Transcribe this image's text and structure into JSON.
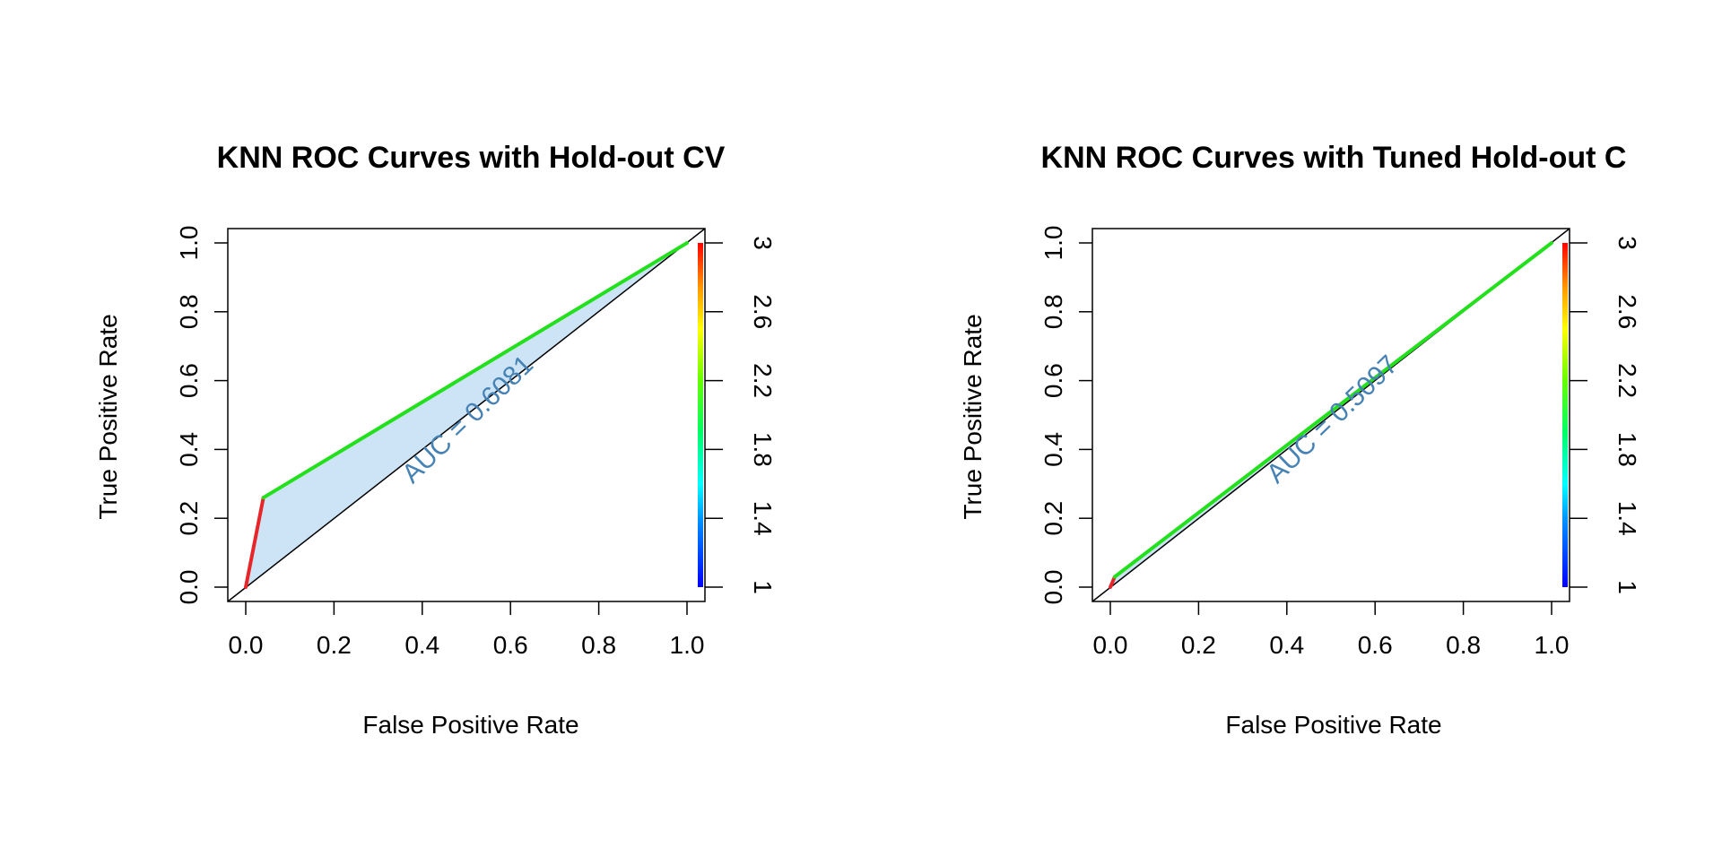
{
  "chart_data": [
    {
      "type": "line",
      "title": "KNN ROC Curves with Hold-out CV",
      "xlabel": "False Positive Rate",
      "ylabel": "True Positive Rate",
      "xlim": [
        0,
        1
      ],
      "ylim": [
        0,
        1
      ],
      "xticks": [
        "0.0",
        "0.2",
        "0.4",
        "0.6",
        "0.8",
        "1.0"
      ],
      "yticks": [
        "0.0",
        "0.2",
        "0.4",
        "0.6",
        "0.8",
        "1.0"
      ],
      "roc_points": [
        [
          0,
          0
        ],
        [
          0.04,
          0.26
        ],
        [
          1,
          1
        ]
      ],
      "roc_colors": [
        "#e8262a",
        "#22e01c"
      ],
      "auc_label": "AUC = 0.6081",
      "auc_color": "#4682b4",
      "fill_color": "#cde3f6",
      "diagonal": true,
      "colorbar_ticks": [
        "1",
        "1.4",
        "1.8",
        "2.2",
        "2.6",
        "3"
      ],
      "colorbar_range": [
        1,
        3
      ]
    },
    {
      "type": "line",
      "title": "KNN ROC Curves with Tuned Hold-out C",
      "xlabel": "False Positive Rate",
      "ylabel": "True Positive Rate",
      "xlim": [
        0,
        1
      ],
      "ylim": [
        0,
        1
      ],
      "xticks": [
        "0.0",
        "0.2",
        "0.4",
        "0.6",
        "0.8",
        "1.0"
      ],
      "yticks": [
        "0.0",
        "0.2",
        "0.4",
        "0.6",
        "0.8",
        "1.0"
      ],
      "roc_points": [
        [
          0,
          0
        ],
        [
          0.01,
          0.03
        ],
        [
          1,
          1
        ]
      ],
      "roc_colors": [
        "#e8262a",
        "#22e01c"
      ],
      "auc_label": "AUC = 0.5097",
      "auc_color": "#4682b4",
      "fill_color": "#cde3f6",
      "diagonal": true,
      "colorbar_ticks": [
        "1",
        "1.4",
        "1.8",
        "2.2",
        "2.6",
        "3"
      ],
      "colorbar_range": [
        1,
        3
      ]
    }
  ]
}
